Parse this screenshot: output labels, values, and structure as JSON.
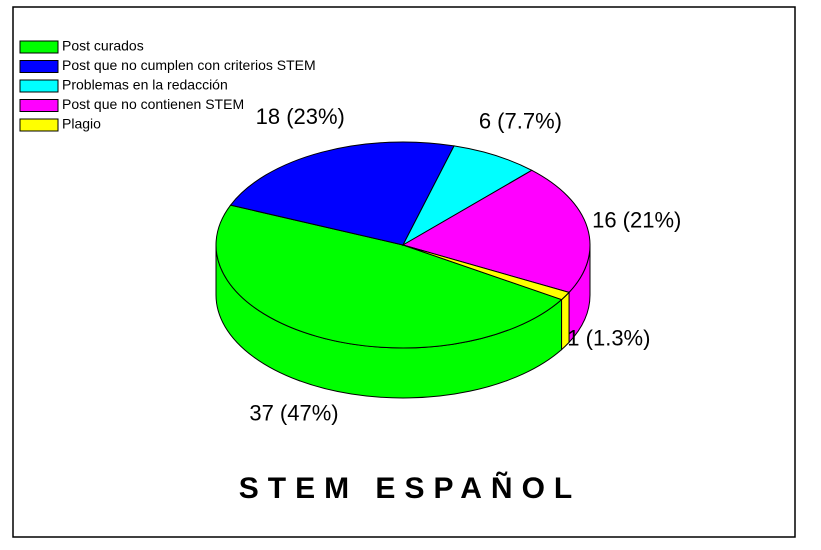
{
  "chart_data": {
    "type": "pie3d",
    "series": [
      {
        "name": "Post curados",
        "color": "#00ff00"
      },
      {
        "name": "Post que no cumplen con criterios STEM",
        "color": "#0000ff"
      },
      {
        "name": "Problemas en la redacción",
        "color": "#00ffff"
      },
      {
        "name": "Post que no contienen STEM",
        "color": "#ff00ff"
      },
      {
        "name": "Plagio",
        "color": "#ffff00"
      }
    ],
    "values": [
      37,
      18,
      6,
      16,
      1
    ],
    "value_labels": [
      "37 (47%)",
      "18 (23%)",
      "6 (7.7%)",
      "16 (21%)",
      "1 (1.3%)"
    ],
    "legend": "top-left",
    "logo": "STEM ESPAÑOL"
  }
}
